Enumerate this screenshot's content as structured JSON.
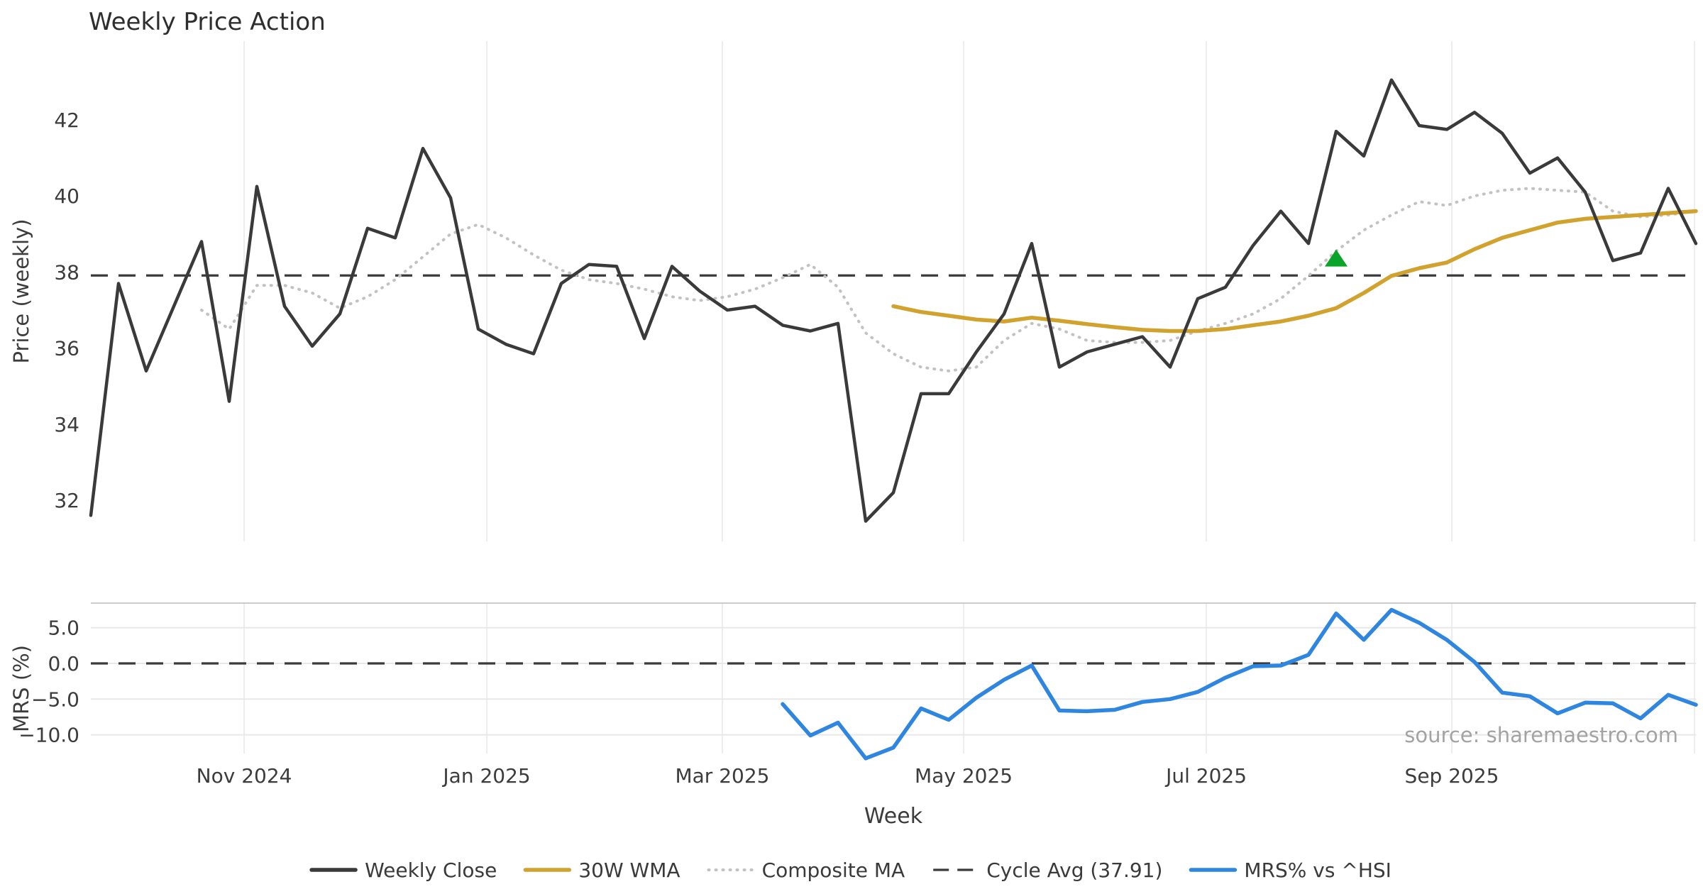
{
  "title": "Weekly Price Action",
  "source_note": "source: sharemaestro.com",
  "chart_data": {
    "type": "line",
    "title": "Weekly Price Action",
    "grid": "vertical-month-lines-both-panels, horizontal-lines-bottom-panel-only",
    "legend_position": "bottom-center-row",
    "x_axis": {
      "label": "Week",
      "tick_labels": [
        "Nov 2024",
        "Jan 2025",
        "Mar 2025",
        "May 2025",
        "Jul 2025",
        "Sep 2025"
      ],
      "tick_week_positions": [
        5.54,
        14.31,
        22.82,
        31.54,
        40.31,
        49.18
      ],
      "extra_unlabeled_gridline_week": 57.95,
      "weeks_total": 59
    },
    "panels": [
      {
        "name": "price",
        "ylabel": "Price (weekly)",
        "ytick_labels": [
          "32",
          "34",
          "36",
          "38",
          "40",
          "42"
        ],
        "ytick_values": [
          32,
          34,
          36,
          38,
          40,
          42
        ],
        "ylim": [
          30.8,
          44.1
        ],
        "series": [
          {
            "name": "Weekly Close",
            "color": "#3a3a3a",
            "style": "solid",
            "width": 4.5,
            "start_week": 0,
            "values": [
              31.6,
              37.7,
              35.4,
              37.1,
              38.8,
              34.6,
              40.25,
              37.1,
              36.05,
              36.9,
              39.15,
              38.9,
              41.25,
              39.95,
              36.5,
              36.1,
              35.85,
              37.7,
              38.2,
              38.15,
              36.25,
              38.15,
              37.5,
              37.0,
              37.1,
              36.6,
              36.45,
              36.65,
              31.45,
              32.2,
              34.8,
              34.8,
              35.9,
              36.9,
              38.75,
              35.5,
              35.9,
              36.1,
              36.3,
              35.5,
              37.3,
              37.6,
              38.7,
              39.6,
              38.75,
              41.7,
              41.05,
              43.05,
              41.85,
              41.75,
              42.2,
              41.65,
              40.6,
              41.0,
              40.1,
              38.3,
              38.5,
              40.2,
              38.75
            ]
          },
          {
            "name": "30W WMA",
            "color": "#d2a22f",
            "style": "solid",
            "width": 5.5,
            "start_week": 29,
            "values": [
              37.1,
              36.95,
              36.85,
              36.75,
              36.7,
              36.8,
              36.72,
              36.63,
              36.55,
              36.48,
              36.45,
              36.45,
              36.5,
              36.6,
              36.7,
              36.85,
              37.05,
              37.45,
              37.9,
              38.1,
              38.25,
              38.6,
              38.9,
              39.1,
              39.3,
              39.4,
              39.45,
              39.5,
              39.55,
              39.6
            ]
          },
          {
            "name": "Composite MA",
            "color": "#c2c2c2",
            "style": "dotted",
            "width": 4,
            "start_week": 4,
            "values": [
              37.0,
              36.5,
              37.65,
              37.65,
              37.45,
              37.05,
              37.35,
              37.8,
              38.4,
              39.0,
              39.25,
              38.9,
              38.45,
              38.05,
              37.8,
              37.7,
              37.55,
              37.35,
              37.25,
              37.35,
              37.55,
              37.85,
              38.2,
              37.6,
              36.4,
              35.85,
              35.5,
              35.4,
              35.5,
              36.2,
              36.65,
              36.5,
              36.2,
              36.15,
              36.15,
              36.2,
              36.45,
              36.65,
              36.9,
              37.3,
              37.9,
              38.55,
              39.1,
              39.5,
              39.85,
              39.75,
              40.0,
              40.15,
              40.2,
              40.15,
              40.1,
              39.6,
              39.45,
              39.5,
              39.6
            ]
          }
        ],
        "reference_line": {
          "label": "Cycle Avg (37.91)",
          "value": 37.91,
          "color": "#3a3a3a",
          "style": "dashed"
        },
        "marker": {
          "name": "buy-signal",
          "shape": "triangle-up",
          "color": "#0aa42a",
          "week": 45,
          "value": 38.35
        }
      },
      {
        "name": "mrs",
        "ylabel": "MRS (%)",
        "ytick_labels": [
          "5.0",
          "0.0",
          "−5.0",
          "−10.0"
        ],
        "ytick_values": [
          5,
          0,
          -5,
          -10
        ],
        "ylim": [
          -14.2,
          8.5
        ],
        "series": [
          {
            "name": "MRS% vs ^HSI",
            "color": "#2e86e0",
            "style": "solid",
            "width": 5.5,
            "start_week": 25,
            "values": [
              -5.7,
              -10.1,
              -8.3,
              -13.3,
              -11.8,
              -6.3,
              -7.9,
              -4.8,
              -2.3,
              -0.3,
              -6.6,
              -6.7,
              -6.5,
              -5.4,
              -5.0,
              -4.0,
              -2.0,
              -0.4,
              -0.3,
              1.2,
              7.0,
              3.3,
              7.5,
              5.7,
              3.3,
              0.2,
              -4.1,
              -4.6,
              -7.0,
              -5.5,
              -5.6,
              -7.7,
              -4.4,
              -5.8
            ]
          }
        ],
        "reference_line": {
          "label": "zero line",
          "value": 0.0,
          "color": "#3a3a3a",
          "style": "dashed"
        }
      }
    ],
    "legend": [
      {
        "label": "Weekly Close",
        "color": "#3a3a3a",
        "style": "solid"
      },
      {
        "label": "30W WMA",
        "color": "#d2a22f",
        "style": "solid"
      },
      {
        "label": "Composite MA",
        "color": "#c2c2c2",
        "style": "dotted"
      },
      {
        "label": "Cycle Avg (37.91)",
        "color": "#3a3a3a",
        "style": "dashed"
      },
      {
        "label": "MRS% vs ^HSI",
        "color": "#2e86e0",
        "style": "solid"
      }
    ]
  }
}
